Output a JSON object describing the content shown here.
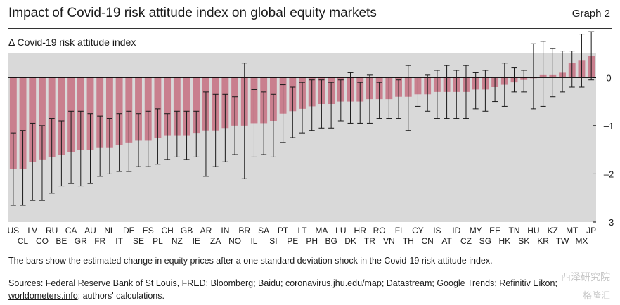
{
  "header": {
    "title": "Impact of Covid-19 risk attitude index on global equity markets",
    "graph_label": "Graph 2",
    "subtitle": "Δ Covid-19 risk attitude index"
  },
  "footer": {
    "note": "The bars show the estimated change in equity prices after a one standard deviation shock in the Covid-19 risk attitude index.",
    "sources_prefix": "Sources: Federal Reserve Bank of St Louis, FRED; Bloomberg; Baidu; ",
    "sources_link1": "coronavirus.jhu.edu/map",
    "sources_mid": "; Datastream; Google Trends; Refinitiv Eikon;",
    "sources_link2": "worldometers.info",
    "sources_suffix": "; authors' calculations.",
    "watermark_1": "西泽研究院",
    "watermark_2": "格隆汇"
  },
  "colors": {
    "bar": "#c97f8e",
    "plot_bg": "#d9d9d9",
    "whisker": "#1a1a1a"
  },
  "chart_data": {
    "type": "bar",
    "title": "Impact of Covid-19 risk attitude index on global equity markets",
    "ylabel": "Δ Covid-19 risk attitude index",
    "ylim": [
      -3,
      0.5
    ],
    "yticks": [
      0,
      -1,
      -2,
      -3
    ],
    "grid": false,
    "categories": [
      "US",
      "CL",
      "LV",
      "CO",
      "RU",
      "BE",
      "CA",
      "GR",
      "AU",
      "FR",
      "NL",
      "IT",
      "DE",
      "SE",
      "ES",
      "PL",
      "CH",
      "NZ",
      "GB",
      "IE",
      "AR",
      "ZA",
      "IN",
      "NO",
      "BR",
      "IL",
      "SA",
      "SI",
      "PT",
      "PE",
      "LT",
      "PH",
      "MA",
      "BG",
      "LU",
      "DK",
      "HR",
      "TR",
      "RO",
      "VN",
      "FI",
      "TH",
      "CY",
      "CN",
      "IS",
      "AT",
      "ID",
      "CZ",
      "MY",
      "SG",
      "EE",
      "HK",
      "TN",
      "SK",
      "HU",
      "KR",
      "KZ",
      "TW",
      "MT",
      "MX",
      "JP"
    ],
    "values": [
      -1.9,
      -1.9,
      -1.75,
      -1.7,
      -1.65,
      -1.6,
      -1.55,
      -1.5,
      -1.5,
      -1.45,
      -1.45,
      -1.4,
      -1.35,
      -1.3,
      -1.3,
      -1.25,
      -1.2,
      -1.2,
      -1.2,
      -1.15,
      -1.1,
      -1.1,
      -1.05,
      -1.0,
      -1.0,
      -0.95,
      -0.95,
      -0.9,
      -0.75,
      -0.7,
      -0.65,
      -0.6,
      -0.55,
      -0.55,
      -0.5,
      -0.5,
      -0.5,
      -0.45,
      -0.45,
      -0.45,
      -0.4,
      -0.4,
      -0.35,
      -0.35,
      -0.3,
      -0.3,
      -0.3,
      -0.3,
      -0.25,
      -0.25,
      -0.2,
      -0.15,
      -0.1,
      -0.05,
      0.0,
      0.05,
      0.05,
      0.1,
      0.3,
      0.35,
      0.45
    ],
    "ci_upper": [
      -1.15,
      -1.1,
      -0.95,
      -1.0,
      -0.85,
      -0.9,
      -0.7,
      -0.7,
      -0.75,
      -0.8,
      -0.85,
      -0.75,
      -0.7,
      -0.75,
      -0.7,
      -0.65,
      -0.75,
      -0.7,
      -0.7,
      -0.7,
      -0.3,
      -0.35,
      -0.35,
      -0.4,
      0.3,
      -0.25,
      -0.3,
      -0.35,
      -0.15,
      -0.2,
      -0.1,
      -0.05,
      -0.05,
      -0.1,
      -0.05,
      0.1,
      -0.1,
      0.05,
      -0.1,
      0.0,
      -0.05,
      0.25,
      0.0,
      0.05,
      0.15,
      0.25,
      0.15,
      0.25,
      0.1,
      0.15,
      0.0,
      0.3,
      0.2,
      0.15,
      0.7,
      0.75,
      0.6,
      0.55,
      0.55,
      0.9,
      0.95
    ],
    "ci_lower": [
      -2.65,
      -2.65,
      -2.55,
      -2.55,
      -2.4,
      -2.25,
      -2.2,
      -2.25,
      -2.2,
      -2.05,
      -2.0,
      -1.95,
      -1.95,
      -1.85,
      -1.85,
      -1.8,
      -1.7,
      -1.65,
      -1.7,
      -1.65,
      -2.05,
      -1.85,
      -1.75,
      -1.6,
      -2.1,
      -1.65,
      -1.6,
      -1.65,
      -1.35,
      -1.25,
      -1.15,
      -1.1,
      -1.05,
      -1.05,
      -0.9,
      -0.95,
      -0.95,
      -0.95,
      -0.85,
      -0.85,
      -0.85,
      -1.1,
      -0.6,
      -0.7,
      -0.85,
      -0.85,
      -0.85,
      -0.85,
      -0.65,
      -0.7,
      -0.5,
      -0.6,
      -0.3,
      -0.3,
      -0.65,
      -0.6,
      -0.4,
      -0.3,
      -0.2,
      -0.2,
      -0.05
    ]
  }
}
